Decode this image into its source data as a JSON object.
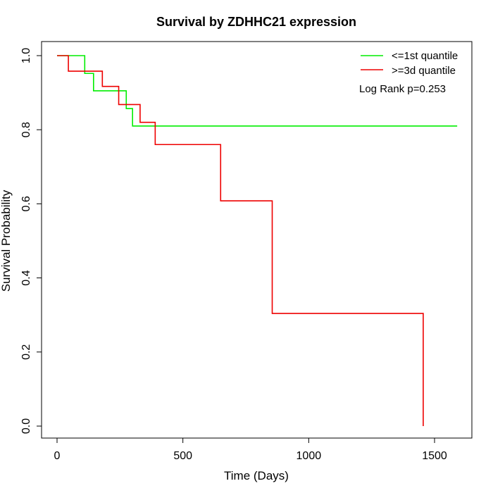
{
  "chart_data": {
    "type": "line",
    "title": "Survival by ZDHHC21 expression",
    "xlabel": "Time (Days)",
    "ylabel": "Survival Probability",
    "xlim": [
      0,
      1650
    ],
    "ylim": [
      0,
      1.0
    ],
    "x_ticks": [
      "0",
      "500",
      "1000",
      "1500"
    ],
    "x_tick_values": [
      0,
      500,
      1000,
      1500
    ],
    "y_ticks": [
      "0.0",
      "0.2",
      "0.4",
      "0.6",
      "0.8",
      "1.0"
    ],
    "y_tick_values": [
      0,
      0.2,
      0.4,
      0.6,
      0.8,
      1.0
    ],
    "grid": false,
    "legend_position": "top-right",
    "annotation": "Log Rank p=0.253",
    "series": [
      {
        "name": "<=1st quantile",
        "color": "#00ee00",
        "step": true,
        "x": [
          0,
          110,
          145,
          275,
          300,
          1590
        ],
        "y": [
          1.0,
          0.952,
          0.905,
          0.857,
          0.81,
          0.81
        ]
      },
      {
        "name": ">=3d quantile",
        "color": "#ee0000",
        "step": true,
        "x": [
          0,
          45,
          180,
          245,
          330,
          390,
          650,
          855,
          1455,
          1455
        ],
        "y": [
          1.0,
          0.958,
          0.917,
          0.868,
          0.82,
          0.76,
          0.608,
          0.304,
          0.304,
          0.0
        ]
      }
    ]
  }
}
